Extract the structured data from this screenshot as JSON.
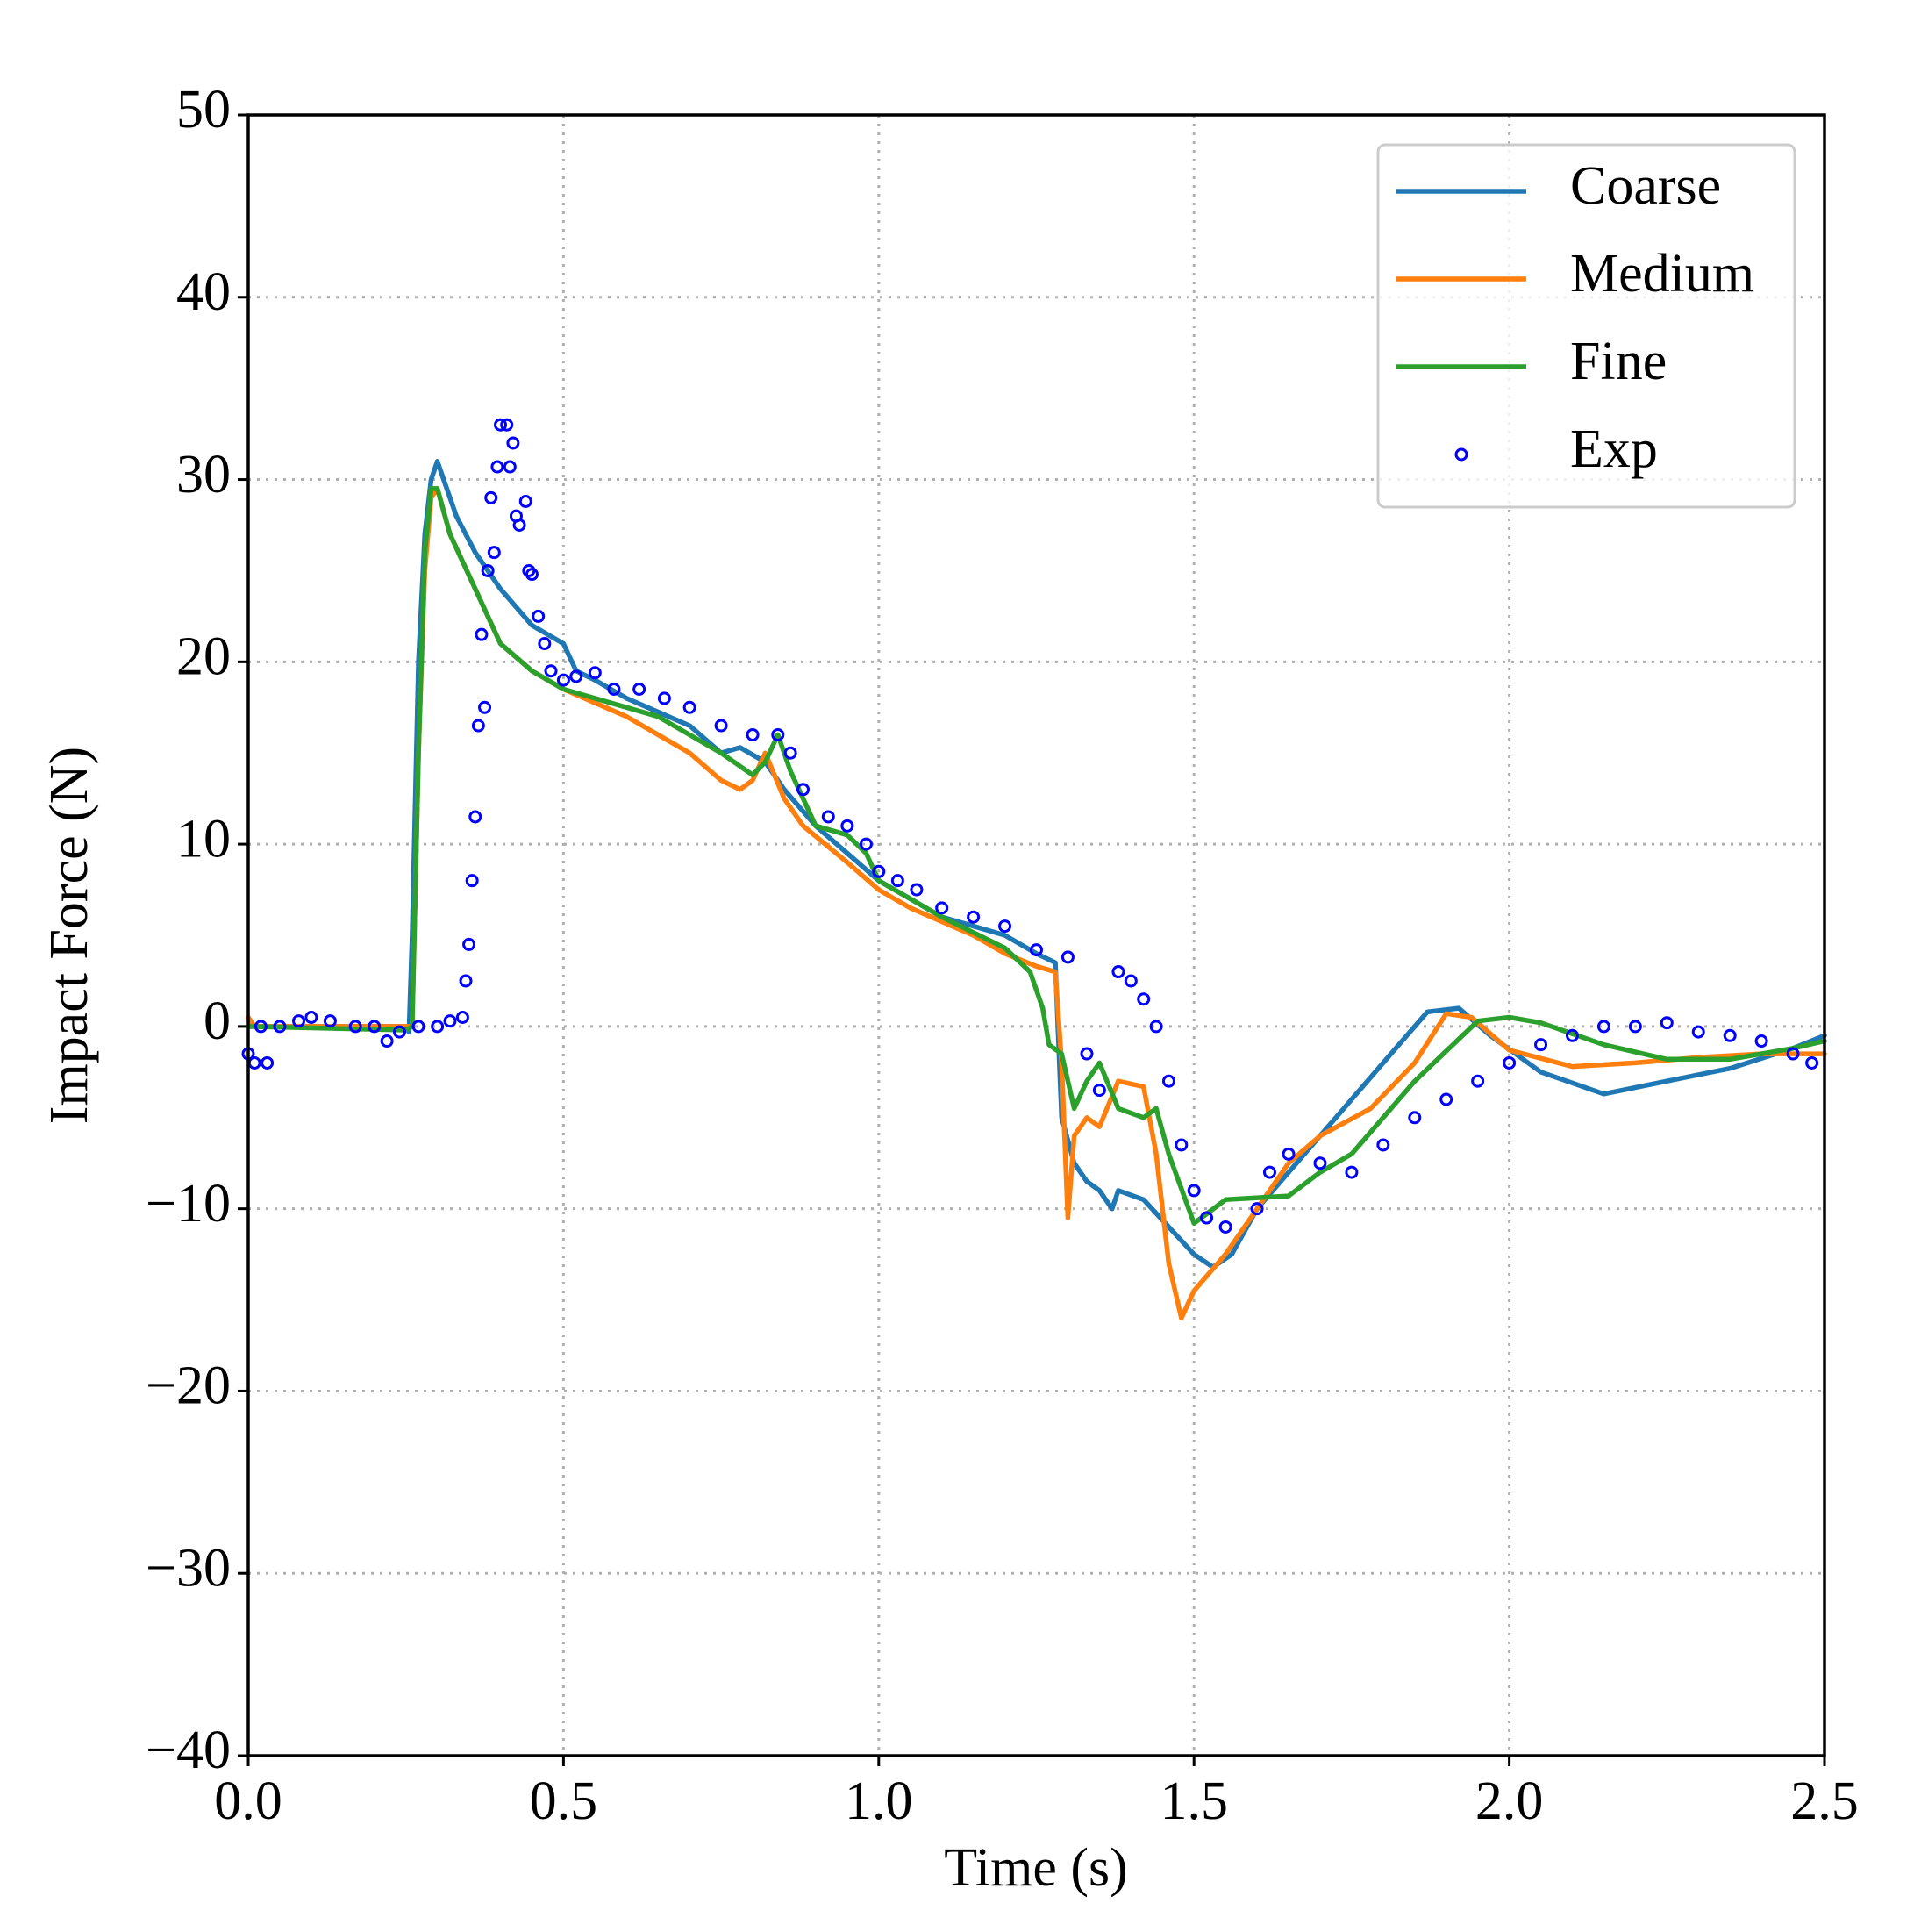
{
  "chart_data": {
    "type": "line",
    "xlabel": "Time (s)",
    "ylabel": "Impact Force (N)",
    "xlim": [
      0,
      2.5
    ],
    "ylim": [
      -40,
      50
    ],
    "xticks": [
      {
        "value": 0,
        "label": "0.0"
      },
      {
        "value": 0.5,
        "label": "0.5"
      },
      {
        "value": 1,
        "label": "1.0"
      },
      {
        "value": 1.5,
        "label": "1.5"
      },
      {
        "value": 2,
        "label": "2.0"
      },
      {
        "value": 2.5,
        "label": "2.5"
      }
    ],
    "yticks": [
      {
        "value": -40,
        "label": "−40"
      },
      {
        "value": -30,
        "label": "−30"
      },
      {
        "value": -20,
        "label": "−20"
      },
      {
        "value": -10,
        "label": "−10"
      },
      0,
      10,
      20,
      30,
      40,
      50
    ],
    "grid": true,
    "legend": "upper right",
    "series": [
      {
        "name": "Coarse",
        "color": "#1f77b4",
        "style": "line",
        "x": [
          0,
          0.1,
          0.25,
          0.255,
          0.26,
          0.27,
          0.28,
          0.29,
          0.3,
          0.31,
          0.33,
          0.36,
          0.4,
          0.45,
          0.5,
          0.52,
          0.55,
          0.6,
          0.7,
          0.75,
          0.78,
          0.82,
          0.85,
          0.9,
          0.95,
          1.0,
          1.05,
          1.1,
          1.2,
          1.25,
          1.28,
          1.29,
          1.31,
          1.33,
          1.35,
          1.37,
          1.38,
          1.42,
          1.46,
          1.5,
          1.53,
          1.56,
          1.6,
          1.7,
          1.8,
          1.87,
          1.92,
          1.97,
          2.05,
          2.15,
          2.25,
          2.35,
          2.45,
          2.5
        ],
        "values": [
          0,
          0,
          0,
          -0.3,
          5,
          20,
          27,
          30,
          31,
          30,
          28,
          26,
          24,
          22,
          21,
          19.5,
          19,
          18,
          16.5,
          15,
          15.3,
          14.5,
          13,
          11,
          9.5,
          8,
          7,
          6,
          5,
          4,
          3.5,
          -5,
          -7.5,
          -8.5,
          -9,
          -10,
          -9,
          -9.5,
          -11,
          -12.5,
          -13.2,
          -12.5,
          -10,
          -6,
          -2,
          0.8,
          1,
          -0.5,
          -2.5,
          -3.7,
          -3,
          -2.3,
          -1.2,
          -0.5
        ]
      },
      {
        "name": "Medium",
        "color": "#ff7f0e",
        "style": "line",
        "x": [
          0,
          0.01,
          0.25,
          0.26,
          0.27,
          0.28,
          0.29,
          0.3,
          0.32,
          0.36,
          0.4,
          0.45,
          0.5,
          0.6,
          0.7,
          0.75,
          0.78,
          0.8,
          0.82,
          0.85,
          0.88,
          0.95,
          1.0,
          1.05,
          1.15,
          1.2,
          1.25,
          1.28,
          1.29,
          1.3,
          1.31,
          1.33,
          1.35,
          1.38,
          1.42,
          1.44,
          1.46,
          1.48,
          1.5,
          1.55,
          1.6,
          1.65,
          1.7,
          1.78,
          1.85,
          1.9,
          1.94,
          2.0,
          2.1,
          2.2,
          2.3,
          2.4,
          2.5
        ],
        "values": [
          0.5,
          0,
          0,
          0,
          15,
          25,
          29,
          29.5,
          27,
          24,
          21,
          19.5,
          18.5,
          17,
          15,
          13.5,
          13,
          13.5,
          15,
          12.5,
          11,
          9,
          7.5,
          6.5,
          5,
          4,
          3.3,
          3,
          -2,
          -10.5,
          -6,
          -5,
          -5.5,
          -3,
          -3.3,
          -7,
          -13,
          -16,
          -14.5,
          -12.5,
          -10,
          -7.5,
          -6,
          -4.5,
          -2,
          0.7,
          0.5,
          -1.3,
          -2.2,
          -2,
          -1.7,
          -1.5,
          -1.5
        ]
      },
      {
        "name": "Fine",
        "color": "#2ca02c",
        "style": "line",
        "x": [
          0,
          0.25,
          0.26,
          0.27,
          0.28,
          0.29,
          0.3,
          0.32,
          0.36,
          0.4,
          0.45,
          0.5,
          0.55,
          0.65,
          0.75,
          0.8,
          0.82,
          0.84,
          0.86,
          0.9,
          0.95,
          0.98,
          1.0,
          1.05,
          1.1,
          1.2,
          1.24,
          1.26,
          1.27,
          1.29,
          1.31,
          1.33,
          1.35,
          1.38,
          1.42,
          1.44,
          1.46,
          1.5,
          1.55,
          1.65,
          1.7,
          1.75,
          1.85,
          1.95,
          2.0,
          2.05,
          2.15,
          2.25,
          2.35,
          2.45,
          2.5
        ],
        "values": [
          0,
          -0.2,
          0,
          15,
          26,
          29.5,
          29.5,
          27,
          24,
          21,
          19.5,
          18.5,
          18,
          17,
          15,
          13.8,
          14.5,
          16,
          14,
          11,
          10.5,
          9.5,
          8,
          7,
          6,
          4.3,
          3,
          1,
          -1,
          -1.5,
          -4.5,
          -3,
          -2,
          -4.5,
          -5,
          -4.5,
          -7,
          -10.8,
          -9.5,
          -9.3,
          -8,
          -7,
          -3,
          0.3,
          0.5,
          0.2,
          -1,
          -1.8,
          -1.8,
          -1.2,
          -0.8
        ]
      },
      {
        "name": "Exp",
        "color": "#0000ff",
        "style": "marker",
        "x": [
          0,
          0.01,
          0.02,
          0.03,
          0.05,
          0.08,
          0.1,
          0.13,
          0.17,
          0.2,
          0.22,
          0.24,
          0.27,
          0.3,
          0.32,
          0.34,
          0.345,
          0.35,
          0.355,
          0.36,
          0.365,
          0.37,
          0.375,
          0.38,
          0.385,
          0.39,
          0.395,
          0.4,
          0.41,
          0.415,
          0.42,
          0.425,
          0.43,
          0.44,
          0.445,
          0.45,
          0.46,
          0.47,
          0.48,
          0.5,
          0.52,
          0.55,
          0.58,
          0.62,
          0.66,
          0.7,
          0.75,
          0.8,
          0.84,
          0.86,
          0.88,
          0.92,
          0.95,
          0.98,
          1.0,
          1.03,
          1.06,
          1.1,
          1.15,
          1.2,
          1.25,
          1.3,
          1.33,
          1.35,
          1.38,
          1.4,
          1.42,
          1.44,
          1.46,
          1.48,
          1.5,
          1.52,
          1.55,
          1.6,
          1.62,
          1.65,
          1.7,
          1.75,
          1.8,
          1.85,
          1.9,
          1.95,
          2.0,
          2.05,
          2.1,
          2.15,
          2.2,
          2.25,
          2.3,
          2.35,
          2.4,
          2.45,
          2.48
        ],
        "values": [
          -1.5,
          -2,
          0,
          -2,
          0,
          0.3,
          0.5,
          0.3,
          0,
          0,
          -0.8,
          -0.3,
          0,
          0,
          0.3,
          0.5,
          2.5,
          4.5,
          8,
          11.5,
          16.5,
          21.5,
          17.5,
          25,
          29,
          26,
          30.7,
          33,
          33,
          30.7,
          32,
          28,
          27.5,
          28.8,
          25,
          24.8,
          22.5,
          21,
          19.5,
          19,
          19.2,
          19.4,
          18.5,
          18.5,
          18,
          17.5,
          16.5,
          16,
          16,
          15,
          13,
          11.5,
          11,
          10,
          8.5,
          8,
          7.5,
          6.5,
          6,
          5.5,
          4.2,
          3.8,
          -1.5,
          -3.5,
          3,
          2.5,
          1.5,
          0,
          -3,
          -6.5,
          -9,
          -10.5,
          -11,
          -10,
          -8,
          -7,
          -7.5,
          -8,
          -6.5,
          -5,
          -4,
          -3,
          -2,
          -1,
          -0.5,
          0,
          0,
          0.2,
          -0.3,
          -0.5,
          -0.8,
          -1.5,
          -2
        ]
      }
    ]
  }
}
